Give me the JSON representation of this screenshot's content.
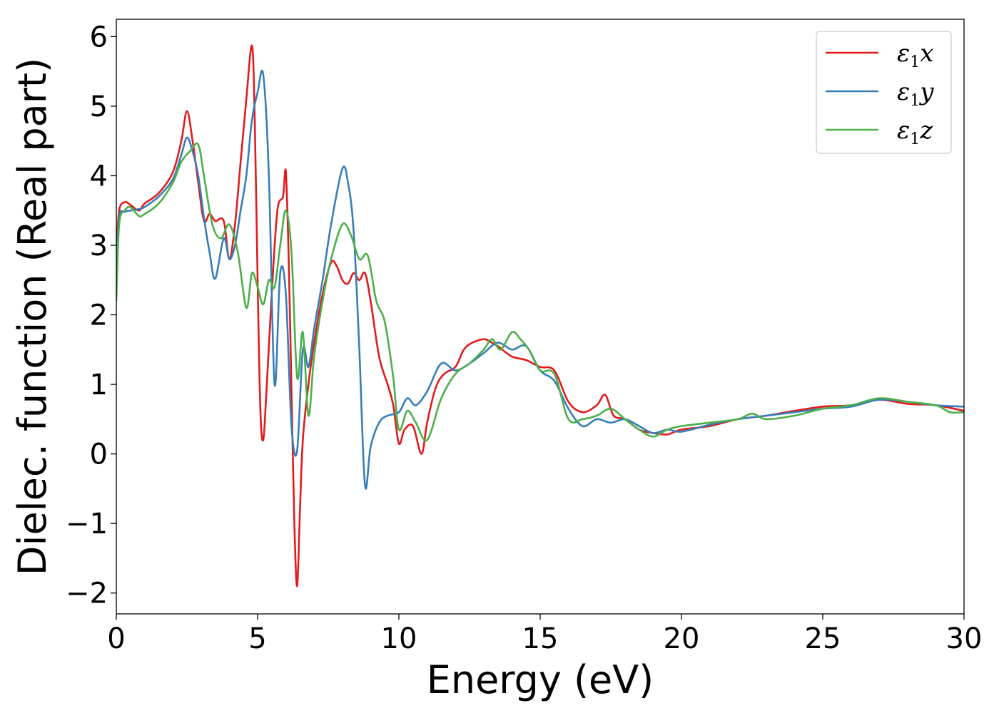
{
  "chart_data": {
    "type": "line",
    "xlabel": "Energy (eV)",
    "ylabel": "Dielec. function (Real part)",
    "xlim": [
      0,
      30
    ],
    "ylim": [
      -2.3,
      6.25
    ],
    "xticks": [
      0,
      5,
      10,
      15,
      20,
      25,
      30
    ],
    "yticks": [
      -2,
      -1,
      0,
      1,
      2,
      3,
      4,
      5,
      6
    ],
    "grid": false,
    "legend_position": "top-right",
    "series": [
      {
        "name": "ε₁x",
        "legend_main": "ε",
        "legend_sub": "1",
        "legend_var": "x",
        "color": "#e41a1c",
        "x": [
          0,
          0.1,
          0.3,
          0.5,
          0.8,
          1.0,
          1.5,
          2.0,
          2.3,
          2.5,
          2.7,
          2.9,
          3.1,
          3.3,
          3.5,
          3.8,
          4.0,
          4.2,
          4.4,
          4.6,
          4.8,
          4.9,
          5.0,
          5.1,
          5.2,
          5.3,
          5.5,
          5.7,
          5.9,
          6.0,
          6.1,
          6.2,
          6.3,
          6.4,
          6.5,
          6.6,
          6.8,
          7.0,
          7.3,
          7.6,
          7.8,
          8.0,
          8.2,
          8.4,
          8.6,
          8.8,
          9.0,
          9.3,
          9.6,
          9.8,
          10.0,
          10.2,
          10.5,
          10.8,
          11.0,
          11.3,
          11.6,
          12.0,
          12.3,
          12.6,
          13.0,
          13.2,
          13.5,
          14.0,
          14.5,
          15.0,
          15.5,
          16.0,
          16.5,
          17.0,
          17.3,
          17.6,
          18.0,
          18.5,
          19.0,
          19.5,
          20.0,
          21.0,
          22.0,
          23.0,
          24.0,
          25.0,
          26.0,
          27.0,
          28.0,
          29.0,
          30.0
        ],
        "values": [
          2.9,
          3.5,
          3.62,
          3.58,
          3.5,
          3.6,
          3.75,
          4.05,
          4.5,
          4.93,
          4.5,
          3.9,
          3.35,
          3.45,
          3.35,
          3.35,
          2.8,
          3.3,
          4.2,
          5.1,
          5.87,
          4.8,
          2.5,
          0.6,
          0.2,
          0.8,
          2.3,
          3.5,
          3.7,
          4.06,
          2.8,
          0.9,
          -1.0,
          -1.9,
          -0.8,
          0.2,
          1.0,
          1.6,
          2.3,
          2.75,
          2.7,
          2.5,
          2.45,
          2.6,
          2.5,
          2.6,
          2.2,
          1.4,
          1.0,
          0.7,
          0.15,
          0.35,
          0.4,
          0.0,
          0.45,
          0.95,
          1.15,
          1.25,
          1.5,
          1.6,
          1.65,
          1.62,
          1.55,
          1.4,
          1.35,
          1.25,
          1.2,
          0.75,
          0.6,
          0.7,
          0.85,
          0.55,
          0.5,
          0.35,
          0.3,
          0.28,
          0.35,
          0.4,
          0.5,
          0.55,
          0.62,
          0.68,
          0.7,
          0.78,
          0.72,
          0.7,
          0.62
        ]
      },
      {
        "name": "ε₁y",
        "legend_main": "ε",
        "legend_sub": "1",
        "legend_var": "y",
        "color": "#377eb8",
        "x": [
          0,
          0.1,
          0.3,
          0.5,
          0.8,
          1.0,
          1.5,
          2.0,
          2.3,
          2.5,
          2.7,
          2.9,
          3.1,
          3.3,
          3.5,
          3.8,
          4.0,
          4.2,
          4.4,
          4.6,
          4.8,
          5.0,
          5.2,
          5.4,
          5.6,
          5.8,
          6.0,
          6.2,
          6.4,
          6.6,
          6.8,
          7.0,
          7.3,
          7.6,
          8.0,
          8.2,
          8.4,
          8.6,
          8.8,
          9.0,
          9.3,
          9.6,
          10.0,
          10.3,
          10.6,
          11.0,
          11.5,
          12.0,
          12.5,
          13.0,
          13.5,
          14.0,
          14.5,
          15.0,
          15.5,
          16.0,
          16.5,
          17.0,
          17.5,
          18.0,
          18.5,
          19.0,
          19.5,
          20.0,
          21.0,
          22.0,
          23.0,
          24.0,
          25.0,
          26.0,
          27.0,
          28.0,
          29.0,
          30.0
        ],
        "values": [
          2.5,
          3.4,
          3.48,
          3.5,
          3.52,
          3.55,
          3.7,
          3.95,
          4.3,
          4.55,
          4.35,
          4.0,
          3.4,
          2.9,
          2.52,
          3.1,
          2.8,
          3.0,
          3.5,
          4.0,
          4.8,
          5.2,
          5.45,
          4.0,
          1.0,
          2.6,
          2.3,
          0.4,
          0.05,
          1.5,
          1.25,
          1.8,
          2.5,
          3.3,
          4.1,
          3.9,
          3.2,
          1.5,
          -0.45,
          0.1,
          0.45,
          0.55,
          0.6,
          0.8,
          0.7,
          0.9,
          1.3,
          1.2,
          1.3,
          1.45,
          1.6,
          1.5,
          1.55,
          1.2,
          1.05,
          0.65,
          0.4,
          0.5,
          0.45,
          0.5,
          0.4,
          0.3,
          0.35,
          0.32,
          0.42,
          0.5,
          0.55,
          0.6,
          0.65,
          0.68,
          0.78,
          0.75,
          0.7,
          0.68
        ]
      },
      {
        "name": "ε₁z",
        "legend_main": "ε",
        "legend_sub": "1",
        "legend_var": "z",
        "color": "#4daf4a",
        "x": [
          0,
          0.1,
          0.3,
          0.5,
          0.8,
          1.0,
          1.5,
          2.0,
          2.3,
          2.6,
          2.9,
          3.1,
          3.4,
          3.7,
          4.0,
          4.3,
          4.6,
          4.8,
          5.0,
          5.2,
          5.4,
          5.6,
          5.8,
          6.0,
          6.2,
          6.4,
          6.6,
          6.8,
          7.0,
          7.3,
          7.6,
          8.0,
          8.3,
          8.6,
          8.9,
          9.2,
          9.5,
          9.8,
          10.0,
          10.3,
          10.6,
          11.0,
          11.5,
          12.0,
          12.5,
          13.0,
          13.3,
          13.6,
          14.0,
          14.3,
          14.6,
          15.0,
          15.5,
          16.0,
          16.5,
          17.0,
          17.5,
          18.0,
          18.5,
          19.0,
          19.5,
          20.0,
          21.0,
          22.0,
          22.5,
          23.0,
          24.0,
          25.0,
          26.0,
          27.0,
          28.0,
          29.0,
          29.5,
          30.0
        ],
        "values": [
          2.2,
          3.3,
          3.5,
          3.55,
          3.42,
          3.45,
          3.6,
          3.9,
          4.2,
          4.35,
          4.45,
          4.0,
          3.3,
          3.1,
          3.3,
          2.9,
          2.1,
          2.6,
          2.4,
          2.15,
          2.5,
          2.4,
          3.0,
          3.5,
          2.9,
          1.1,
          1.75,
          0.55,
          1.4,
          2.2,
          2.8,
          3.3,
          3.15,
          2.8,
          2.85,
          2.2,
          1.9,
          1.1,
          0.35,
          0.62,
          0.45,
          0.2,
          0.8,
          1.15,
          1.3,
          1.5,
          1.65,
          1.5,
          1.75,
          1.65,
          1.5,
          1.2,
          1.15,
          0.5,
          0.5,
          0.55,
          0.65,
          0.5,
          0.35,
          0.25,
          0.35,
          0.4,
          0.45,
          0.5,
          0.58,
          0.5,
          0.55,
          0.65,
          0.7,
          0.8,
          0.75,
          0.7,
          0.6,
          0.6
        ]
      }
    ]
  }
}
